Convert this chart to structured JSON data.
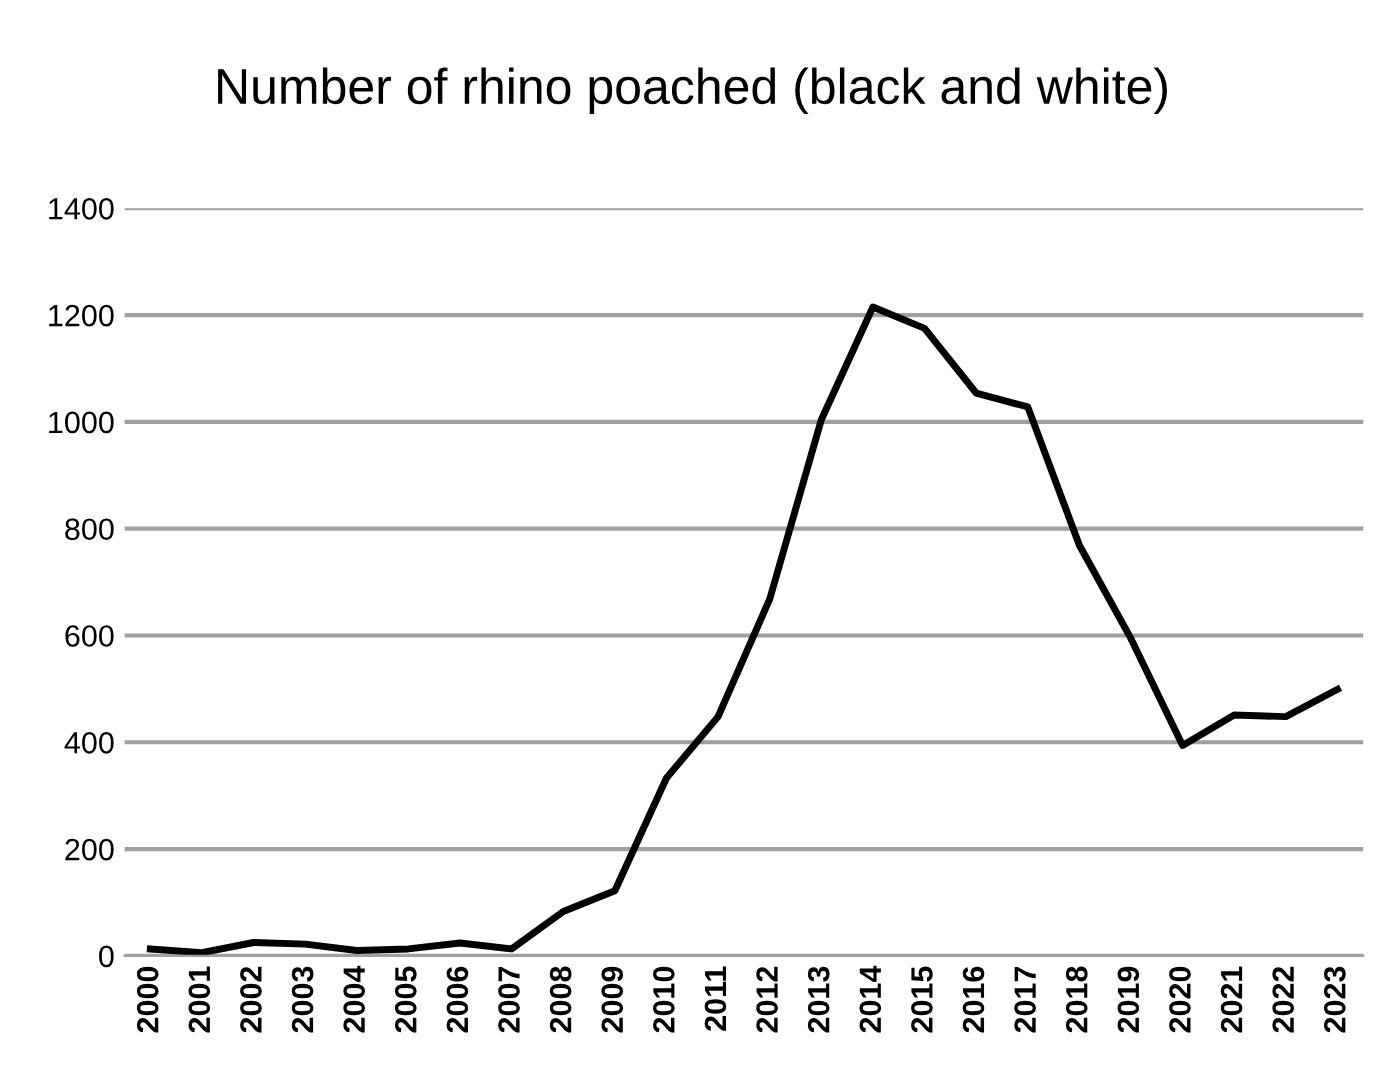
{
  "chart_data": {
    "type": "line",
    "title": "Number of rhino poached (black and white)",
    "categories": [
      "2000",
      "2001",
      "2002",
      "2003",
      "2004",
      "2005",
      "2006",
      "2007",
      "2008",
      "2009",
      "2010",
      "2011",
      "2012",
      "2013",
      "2014",
      "2015",
      "2016",
      "2017",
      "2018",
      "2019",
      "2020",
      "2021",
      "2022",
      "2023"
    ],
    "series": [
      {
        "color": "#000000",
        "values": [
          13,
          6,
          25,
          22,
          10,
          13,
          24,
          13,
          83,
          122,
          333,
          448,
          668,
          1004,
          1215,
          1175,
          1054,
          1028,
          769,
          594,
          394,
          451,
          448,
          499
        ]
      }
    ],
    "ylim": [
      0,
      1400
    ],
    "yticks": [
      0,
      200,
      400,
      600,
      800,
      1000,
      1200,
      1400
    ],
    "grid": "y",
    "legend": false,
    "marker": "none",
    "line_style": "solid"
  }
}
